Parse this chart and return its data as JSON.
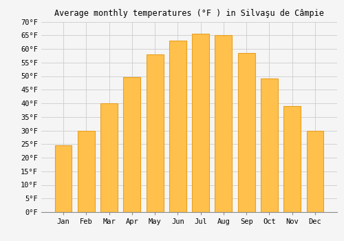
{
  "title": "Average monthly temperatures (°F ) in Silvaşu de Câmpie",
  "months": [
    "Jan",
    "Feb",
    "Mar",
    "Apr",
    "May",
    "Jun",
    "Jul",
    "Aug",
    "Sep",
    "Oct",
    "Nov",
    "Dec"
  ],
  "values": [
    24.5,
    30,
    40,
    49.5,
    58,
    63,
    65.5,
    65,
    58.5,
    49,
    39,
    30
  ],
  "bar_color": "#FFC04C",
  "bar_edge_color": "#E8A020",
  "ylim": [
    0,
    70
  ],
  "yticks": [
    0,
    5,
    10,
    15,
    20,
    25,
    30,
    35,
    40,
    45,
    50,
    55,
    60,
    65,
    70
  ],
  "ytick_labels": [
    "0°F",
    "5°F",
    "10°F",
    "15°F",
    "20°F",
    "25°F",
    "30°F",
    "35°F",
    "40°F",
    "45°F",
    "50°F",
    "55°F",
    "60°F",
    "65°F",
    "70°F"
  ],
  "background_color": "#F5F5F5",
  "grid_color": "#CCCCCC",
  "title_fontsize": 8.5,
  "tick_fontsize": 7.5,
  "font_family": "monospace"
}
